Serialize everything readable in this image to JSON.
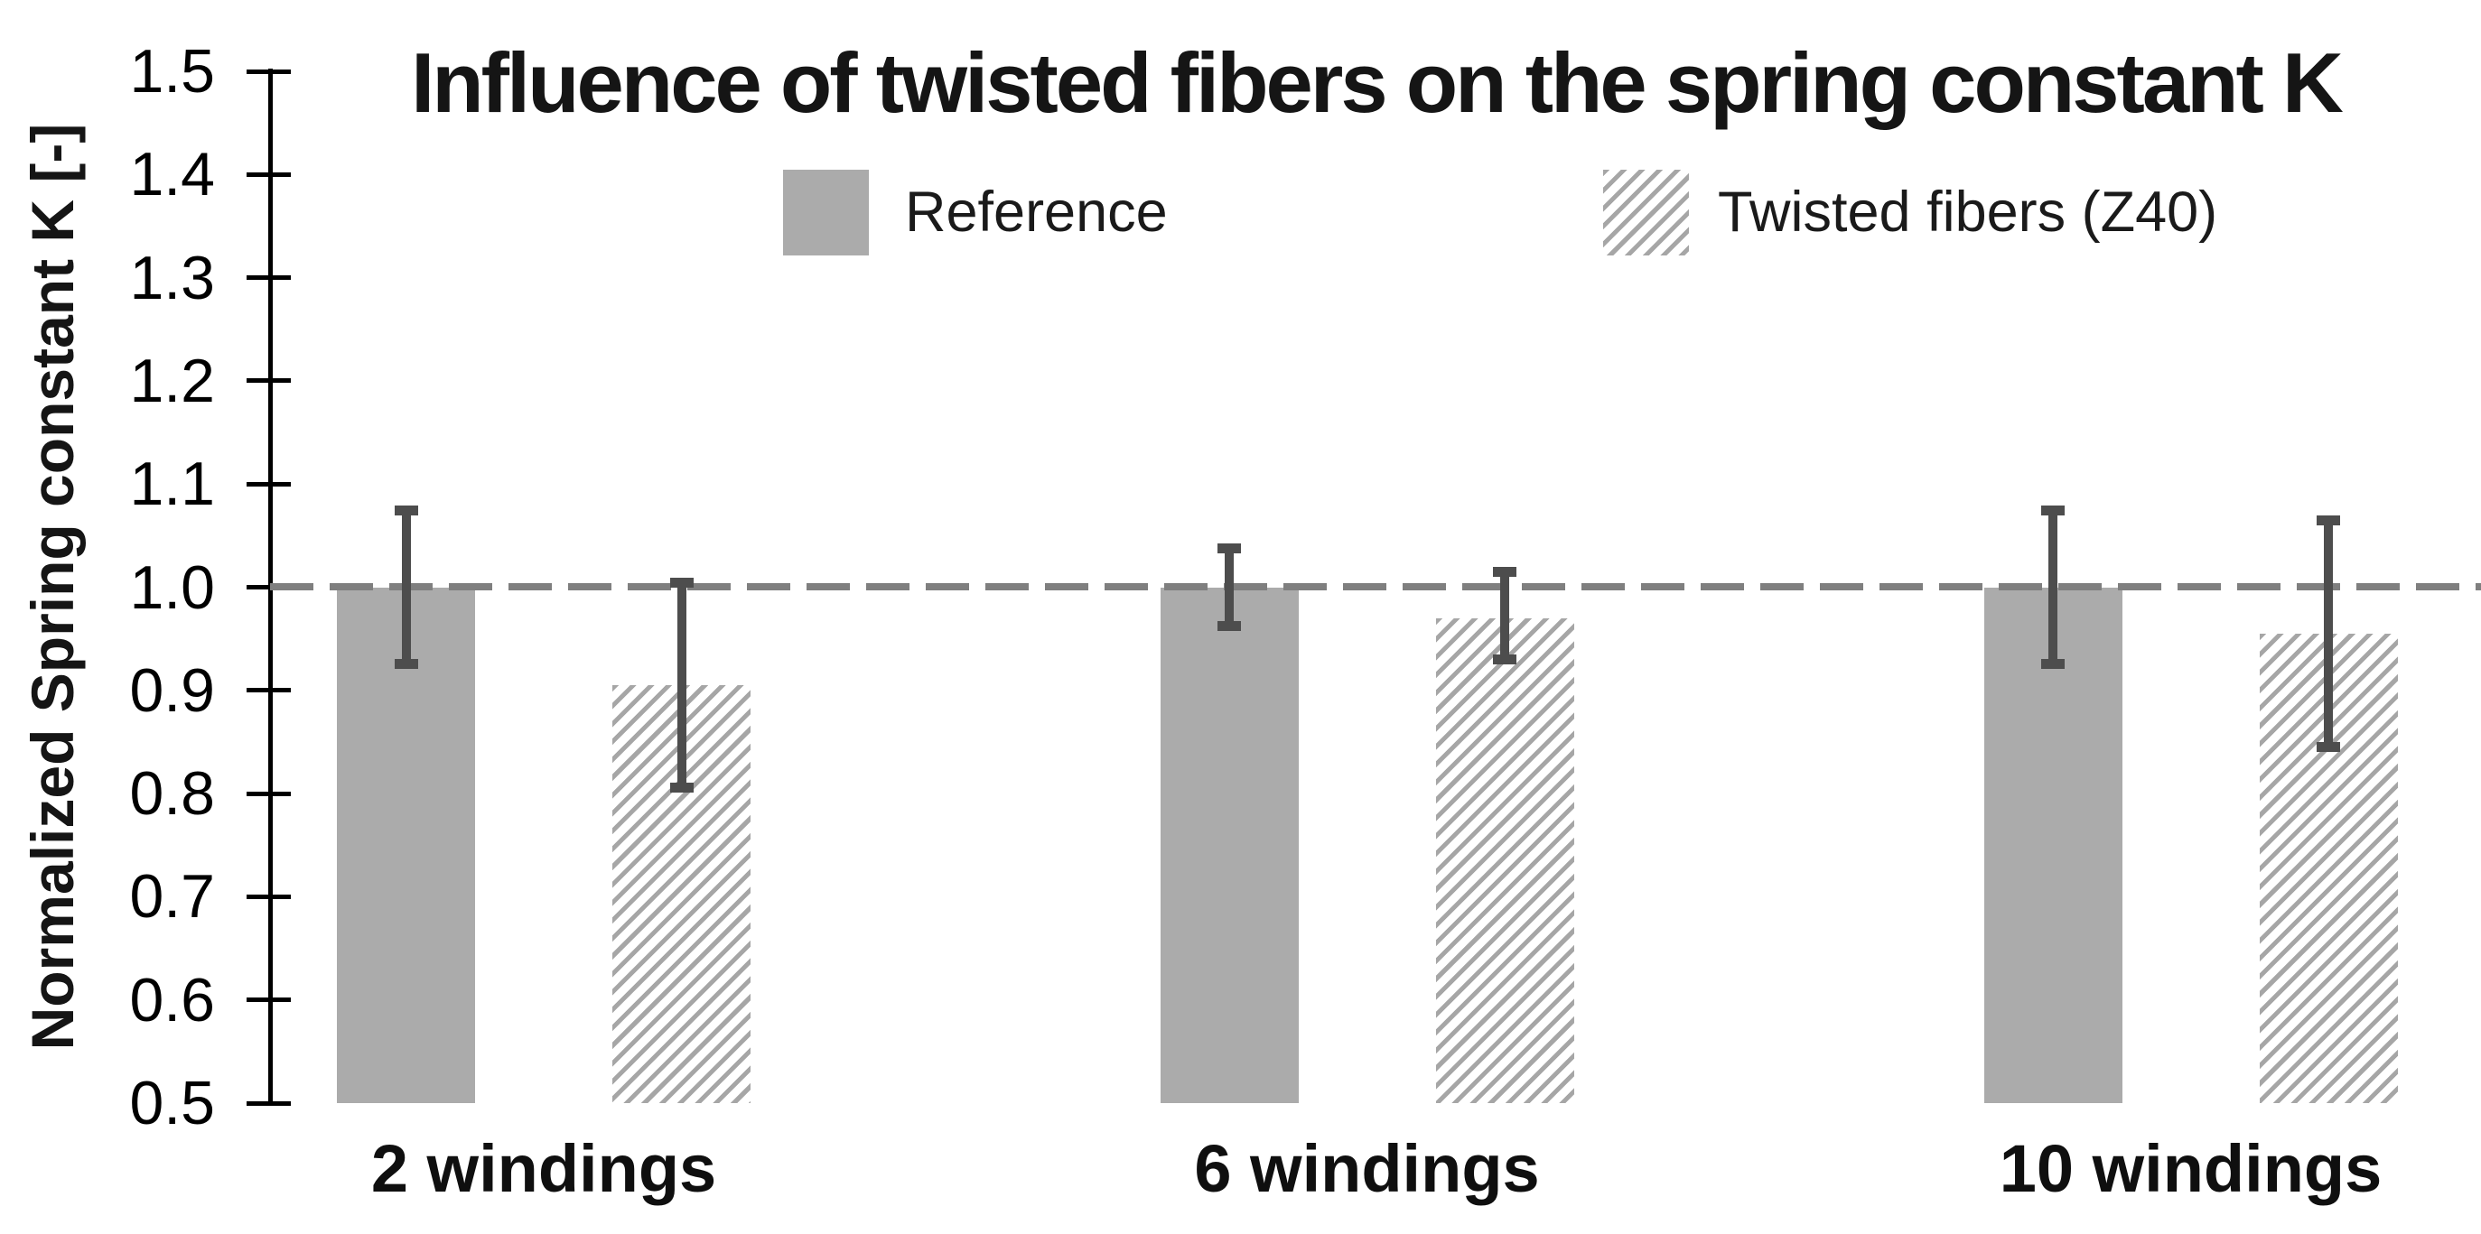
{
  "title": "Influence of twisted fibers on the spring constant K",
  "y_axis": {
    "label": "Normalized Spring constant K [-]",
    "tick_labels": [
      "1.5",
      "1.4",
      "1.3",
      "1.2",
      "1.1",
      "1.0",
      "0.9",
      "0.8",
      "0.7",
      "0.6",
      "0.5"
    ]
  },
  "legend": {
    "items": [
      {
        "label": "Reference",
        "swatch": "solid"
      },
      {
        "label": "Twisted fibers (Z40)",
        "swatch": "hatched"
      }
    ]
  },
  "chart_data": {
    "type": "bar",
    "title": "Influence of twisted fibers on the spring constant K",
    "xlabel": "",
    "ylabel": "Normalized Spring constant K [-]",
    "categories": [
      "2 windings",
      "6 windings",
      "10 windings"
    ],
    "series": [
      {
        "name": "Reference",
        "style": "solid",
        "values": [
          1.0,
          1.0,
          1.0
        ],
        "error_low": [
          0.925,
          0.962,
          0.925
        ],
        "error_high": [
          1.075,
          1.038,
          1.075
        ]
      },
      {
        "name": "Twisted fibers (Z40)",
        "style": "hatched",
        "values": [
          0.905,
          0.97,
          0.955
        ],
        "error_low": [
          0.805,
          0.93,
          0.845
        ],
        "error_high": [
          1.005,
          1.015,
          1.065
        ]
      }
    ],
    "ylim": [
      0.5,
      1.5
    ],
    "ytick_step": 0.1,
    "reference_line": 1.0,
    "grid": false,
    "legend_position": "top",
    "error_bars": true
  },
  "colors": {
    "bar_fill": "#ababab",
    "hatch_line": "#a6a6a6",
    "hatch_background": "#ffffff",
    "error_bar": "#4d4d4d",
    "dashed_reference_line": "#7f7f7f",
    "axis": "#000000",
    "text": "#151515"
  }
}
